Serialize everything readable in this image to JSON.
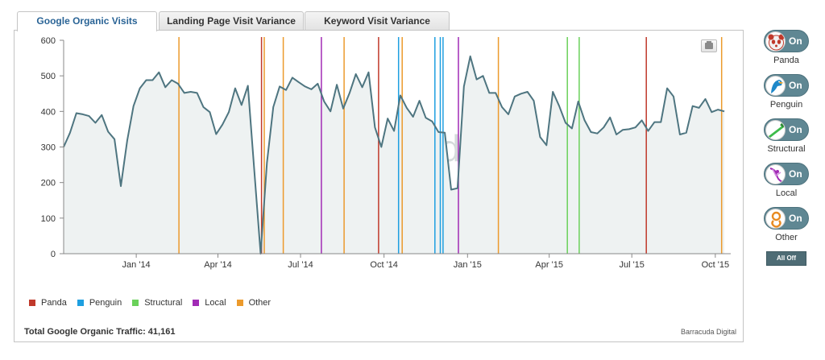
{
  "tabs": [
    {
      "label": "Google Organic Visits",
      "active": true
    },
    {
      "label": "Landing Page Visit Variance",
      "active": false
    },
    {
      "label": "Keyword Visit Variance",
      "active": false
    }
  ],
  "watermark": "barracuda",
  "footer": {
    "total": "Total Google Organic Traffic: 41,161",
    "credit": "Barracuda Digital"
  },
  "side_toggles": [
    {
      "label": "Panda",
      "state": "On",
      "icon": "panda-icon",
      "accent": "#c0392b"
    },
    {
      "label": "Penguin",
      "state": "On",
      "icon": "penguin-icon",
      "accent": "#1e88c9"
    },
    {
      "label": "Structural",
      "state": "On",
      "icon": "structural-icon",
      "accent": "#3dbb4a"
    },
    {
      "label": "Local",
      "state": "On",
      "icon": "local-icon",
      "accent": "#a12bb5"
    },
    {
      "label": "Other",
      "state": "On",
      "icon": "other-icon",
      "accent": "#e88b22"
    }
  ],
  "all_off_label": "All Off",
  "chart_data": {
    "type": "area",
    "title": "",
    "xlabel": "",
    "ylabel": "",
    "ylim": [
      0,
      600
    ],
    "yticks": [
      0,
      100,
      200,
      300,
      400,
      500,
      600
    ],
    "xlim": [
      "2013-10-13",
      "2015-10-18"
    ],
    "xticks": [
      {
        "label": "Jan '14",
        "date": "2014-01-01"
      },
      {
        "label": "Apr '14",
        "date": "2014-04-01"
      },
      {
        "label": "Jul '14",
        "date": "2014-07-01"
      },
      {
        "label": "Oct '14",
        "date": "2014-10-01"
      },
      {
        "label": "Jan '15",
        "date": "2015-01-01"
      },
      {
        "label": "Apr '15",
        "date": "2015-04-01"
      },
      {
        "label": "Jul '15",
        "date": "2015-07-01"
      },
      {
        "label": "Oct '15",
        "date": "2015-10-01"
      }
    ],
    "grid": false,
    "line_color": "#4e7580",
    "fill_color": "#eef2f2",
    "series": [
      {
        "dates": [
          "2013-10-13",
          "2013-10-20",
          "2013-10-27",
          "2013-11-03",
          "2013-11-10",
          "2013-11-17",
          "2013-11-24",
          "2013-12-01",
          "2013-12-08",
          "2013-12-15",
          "2013-12-22",
          "2013-12-29",
          "2014-01-05",
          "2014-01-12",
          "2014-01-19",
          "2014-01-26",
          "2014-02-02",
          "2014-02-09",
          "2014-02-16",
          "2014-02-23",
          "2014-03-02",
          "2014-03-09",
          "2014-03-16",
          "2014-03-23",
          "2014-03-30",
          "2014-04-06",
          "2014-04-13",
          "2014-04-20",
          "2014-04-27",
          "2014-05-04",
          "2014-05-11",
          "2014-05-18",
          "2014-05-25",
          "2014-06-01",
          "2014-06-08",
          "2014-06-15",
          "2014-06-22",
          "2014-06-29",
          "2014-07-06",
          "2014-07-13",
          "2014-07-20",
          "2014-07-27",
          "2014-08-03",
          "2014-08-10",
          "2014-08-17",
          "2014-08-24",
          "2014-08-31",
          "2014-09-07",
          "2014-09-14",
          "2014-09-21",
          "2014-09-28",
          "2014-10-05",
          "2014-10-12",
          "2014-10-19",
          "2014-10-26",
          "2014-11-02",
          "2014-11-09",
          "2014-11-16",
          "2014-11-23",
          "2014-11-30",
          "2014-12-07",
          "2014-12-14",
          "2014-12-21",
          "2014-12-28",
          "2015-01-04",
          "2015-01-11",
          "2015-01-18",
          "2015-01-25",
          "2015-02-01",
          "2015-02-08",
          "2015-02-15",
          "2015-02-22",
          "2015-03-01",
          "2015-03-08",
          "2015-03-15",
          "2015-03-22",
          "2015-03-29",
          "2015-04-05",
          "2015-04-12",
          "2015-04-19",
          "2015-04-26",
          "2015-05-03",
          "2015-05-10",
          "2015-05-17",
          "2015-05-24",
          "2015-05-31",
          "2015-06-07",
          "2015-06-14",
          "2015-06-21",
          "2015-06-28",
          "2015-07-05",
          "2015-07-12",
          "2015-07-19",
          "2015-07-26",
          "2015-08-02",
          "2015-08-09",
          "2015-08-16",
          "2015-08-23",
          "2015-08-30",
          "2015-09-06",
          "2015-09-13",
          "2015-09-20",
          "2015-09-27",
          "2015-10-04",
          "2015-10-11"
        ],
        "values": [
          300,
          340,
          395,
          392,
          387,
          368,
          390,
          343,
          322,
          190,
          318,
          415,
          465,
          488,
          488,
          510,
          468,
          488,
          478,
          452,
          455,
          452,
          412,
          398,
          336,
          363,
          398,
          465,
          418,
          472,
          235,
          0,
          255,
          412,
          470,
          460,
          495,
          482,
          470,
          462,
          478,
          428,
          400,
          475,
          408,
          452,
          505,
          468,
          510,
          355,
          300,
          380,
          345,
          445,
          410,
          385,
          430,
          382,
          372,
          342,
          340,
          180,
          184,
          470,
          555,
          490,
          500,
          452,
          452,
          412,
          392,
          442,
          450,
          455,
          430,
          328,
          305,
          455,
          415,
          368,
          352,
          428,
          375,
          342,
          338,
          355,
          383,
          335,
          348,
          350,
          355,
          375,
          345,
          370,
          370,
          465,
          442,
          335,
          340,
          415,
          410,
          435,
          398,
          405,
          400
        ]
      }
    ],
    "annotations": [
      {
        "category": "Other",
        "date": "2014-02-17"
      },
      {
        "category": "Panda",
        "date": "2014-05-19"
      },
      {
        "category": "Other",
        "date": "2014-05-22"
      },
      {
        "category": "Other",
        "date": "2014-06-12"
      },
      {
        "category": "Local",
        "date": "2014-07-24"
      },
      {
        "category": "Other",
        "date": "2014-08-18"
      },
      {
        "category": "Panda",
        "date": "2014-09-25"
      },
      {
        "category": "Penguin",
        "date": "2014-10-17"
      },
      {
        "category": "Other",
        "date": "2014-10-21"
      },
      {
        "category": "Penguin",
        "date": "2014-11-26"
      },
      {
        "category": "Penguin",
        "date": "2014-12-02"
      },
      {
        "category": "Penguin",
        "date": "2014-12-05"
      },
      {
        "category": "Local",
        "date": "2014-12-22"
      },
      {
        "category": "Other",
        "date": "2015-02-04"
      },
      {
        "category": "Structural",
        "date": "2015-04-21"
      },
      {
        "category": "Structural",
        "date": "2015-05-04"
      },
      {
        "category": "Panda",
        "date": "2015-07-17"
      },
      {
        "category": "Other",
        "date": "2015-10-08"
      }
    ],
    "legend": {
      "placement": "bottom-left",
      "entries": [
        {
          "name": "Panda",
          "color": "#c0392b"
        },
        {
          "name": "Penguin",
          "color": "#1e9fe0"
        },
        {
          "name": "Structural",
          "color": "#6ad15a"
        },
        {
          "name": "Local",
          "color": "#a12bb5"
        },
        {
          "name": "Other",
          "color": "#ec9a2c"
        }
      ]
    }
  }
}
